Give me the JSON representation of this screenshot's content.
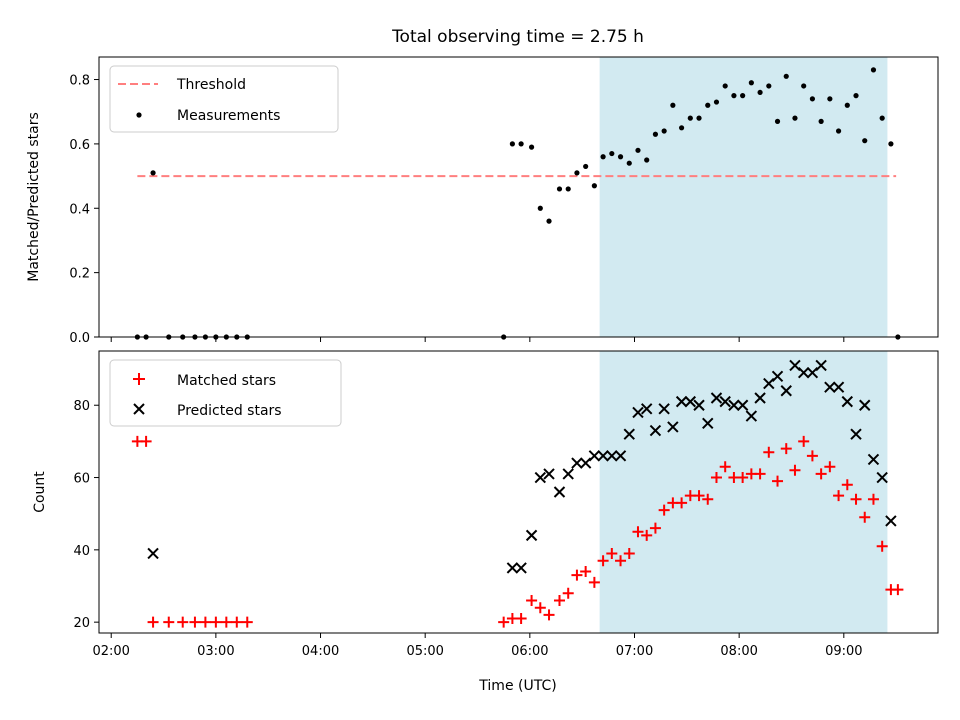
{
  "chart_data": [
    {
      "type": "scatter",
      "title": "Total observing time = 2.75 h",
      "xlabel": "",
      "ylabel": "Matched/Predicted stars",
      "ylim": [
        0,
        0.87
      ],
      "yticks": [
        "0.0",
        "0.2",
        "0.4",
        "0.6",
        "0.8"
      ],
      "ytick_values": [
        0,
        0.2,
        0.4,
        0.6,
        0.8
      ],
      "shaded_range": [
        "06:40",
        "09:25"
      ],
      "legend_position": "upper left",
      "threshold": {
        "name": "Threshold",
        "color": "#ff7f7f",
        "x": [
          "02:15",
          "09:30"
        ],
        "y": 0.5
      },
      "series": [
        {
          "name": "Measurements",
          "color": "#000000",
          "marker": "dot",
          "points": [
            [
              "02:15",
              0.0
            ],
            [
              "02:20",
              0.0
            ],
            [
              "02:24",
              0.51
            ],
            [
              "02:33",
              0.0
            ],
            [
              "02:41",
              0.0
            ],
            [
              "02:48",
              0.0
            ],
            [
              "02:54",
              0.0
            ],
            [
              "03:00",
              0.0
            ],
            [
              "03:06",
              0.0
            ],
            [
              "03:12",
              0.0
            ],
            [
              "03:18",
              0.0
            ],
            [
              "05:45",
              0.0
            ],
            [
              "05:50",
              0.6
            ],
            [
              "05:55",
              0.6
            ],
            [
              "06:01",
              0.59
            ],
            [
              "06:06",
              0.4
            ],
            [
              "06:11",
              0.36
            ],
            [
              "06:17",
              0.46
            ],
            [
              "06:22",
              0.46
            ],
            [
              "06:27",
              0.51
            ],
            [
              "06:32",
              0.53
            ],
            [
              "06:37",
              0.47
            ],
            [
              "06:42",
              0.56
            ],
            [
              "06:47",
              0.57
            ],
            [
              "06:52",
              0.56
            ],
            [
              "06:57",
              0.54
            ],
            [
              "07:02",
              0.58
            ],
            [
              "07:07",
              0.55
            ],
            [
              "07:12",
              0.63
            ],
            [
              "07:17",
              0.64
            ],
            [
              "07:22",
              0.72
            ],
            [
              "07:27",
              0.65
            ],
            [
              "07:32",
              0.68
            ],
            [
              "07:37",
              0.68
            ],
            [
              "07:42",
              0.72
            ],
            [
              "07:47",
              0.73
            ],
            [
              "07:52",
              0.78
            ],
            [
              "07:57",
              0.75
            ],
            [
              "08:02",
              0.75
            ],
            [
              "08:07",
              0.79
            ],
            [
              "08:12",
              0.76
            ],
            [
              "08:17",
              0.78
            ],
            [
              "08:22",
              0.67
            ],
            [
              "08:27",
              0.81
            ],
            [
              "08:32",
              0.68
            ],
            [
              "08:37",
              0.78
            ],
            [
              "08:42",
              0.74
            ],
            [
              "08:47",
              0.67
            ],
            [
              "08:52",
              0.74
            ],
            [
              "08:57",
              0.64
            ],
            [
              "09:02",
              0.72
            ],
            [
              "09:07",
              0.75
            ],
            [
              "09:12",
              0.61
            ],
            [
              "09:17",
              0.83
            ],
            [
              "09:22",
              0.68
            ],
            [
              "09:27",
              0.6
            ],
            [
              "09:31",
              0.0
            ]
          ]
        }
      ]
    },
    {
      "type": "scatter",
      "title": "",
      "xlabel": "Time (UTC)",
      "ylabel": "Count",
      "ylim": [
        17,
        95
      ],
      "yticks": [
        "20",
        "40",
        "60",
        "80"
      ],
      "ytick_values": [
        20,
        40,
        60,
        80
      ],
      "xticks": [
        "02:00",
        "03:00",
        "04:00",
        "05:00",
        "06:00",
        "07:00",
        "08:00",
        "09:00"
      ],
      "xlim": [
        "01:53",
        "09:54"
      ],
      "shaded_range": [
        "06:40",
        "09:25"
      ],
      "legend_position": "upper left",
      "series": [
        {
          "name": "Matched stars",
          "color": "#ff0000",
          "marker": "plus",
          "points": [
            [
              "02:15",
              70
            ],
            [
              "02:20",
              70
            ],
            [
              "02:24",
              20
            ],
            [
              "02:33",
              20
            ],
            [
              "02:41",
              20
            ],
            [
              "02:48",
              20
            ],
            [
              "02:54",
              20
            ],
            [
              "03:00",
              20
            ],
            [
              "03:06",
              20
            ],
            [
              "03:12",
              20
            ],
            [
              "03:18",
              20
            ],
            [
              "05:45",
              20
            ],
            [
              "05:50",
              21
            ],
            [
              "05:55",
              21
            ],
            [
              "06:01",
              26
            ],
            [
              "06:06",
              24
            ],
            [
              "06:11",
              22
            ],
            [
              "06:17",
              26
            ],
            [
              "06:22",
              28
            ],
            [
              "06:27",
              33
            ],
            [
              "06:32",
              34
            ],
            [
              "06:37",
              31
            ],
            [
              "06:42",
              37
            ],
            [
              "06:47",
              39
            ],
            [
              "06:52",
              37
            ],
            [
              "06:57",
              39
            ],
            [
              "07:02",
              45
            ],
            [
              "07:07",
              44
            ],
            [
              "07:12",
              46
            ],
            [
              "07:17",
              51
            ],
            [
              "07:22",
              53
            ],
            [
              "07:27",
              53
            ],
            [
              "07:32",
              55
            ],
            [
              "07:37",
              55
            ],
            [
              "07:42",
              54
            ],
            [
              "07:47",
              60
            ],
            [
              "07:52",
              63
            ],
            [
              "07:57",
              60
            ],
            [
              "08:02",
              60
            ],
            [
              "08:07",
              61
            ],
            [
              "08:12",
              61
            ],
            [
              "08:17",
              67
            ],
            [
              "08:22",
              59
            ],
            [
              "08:27",
              68
            ],
            [
              "08:32",
              62
            ],
            [
              "08:37",
              70
            ],
            [
              "08:42",
              66
            ],
            [
              "08:47",
              61
            ],
            [
              "08:52",
              63
            ],
            [
              "08:57",
              55
            ],
            [
              "09:02",
              58
            ],
            [
              "09:07",
              54
            ],
            [
              "09:12",
              49
            ],
            [
              "09:17",
              54
            ],
            [
              "09:22",
              41
            ],
            [
              "09:27",
              29
            ],
            [
              "09:31",
              29
            ]
          ]
        },
        {
          "name": "Predicted stars",
          "color": "#000000",
          "marker": "x",
          "points": [
            [
              "02:24",
              39
            ],
            [
              "05:50",
              35
            ],
            [
              "05:55",
              35
            ],
            [
              "06:01",
              44
            ],
            [
              "06:06",
              60
            ],
            [
              "06:11",
              61
            ],
            [
              "06:17",
              56
            ],
            [
              "06:22",
              61
            ],
            [
              "06:27",
              64
            ],
            [
              "06:32",
              64
            ],
            [
              "06:37",
              66
            ],
            [
              "06:42",
              66
            ],
            [
              "06:47",
              66
            ],
            [
              "06:52",
              66
            ],
            [
              "06:57",
              72
            ],
            [
              "07:02",
              78
            ],
            [
              "07:07",
              79
            ],
            [
              "07:12",
              73
            ],
            [
              "07:17",
              79
            ],
            [
              "07:22",
              74
            ],
            [
              "07:27",
              81
            ],
            [
              "07:32",
              81
            ],
            [
              "07:37",
              80
            ],
            [
              "07:42",
              75
            ],
            [
              "07:47",
              82
            ],
            [
              "07:52",
              81
            ],
            [
              "07:57",
              80
            ],
            [
              "08:02",
              80
            ],
            [
              "08:07",
              77
            ],
            [
              "08:12",
              82
            ],
            [
              "08:17",
              86
            ],
            [
              "08:22",
              88
            ],
            [
              "08:27",
              84
            ],
            [
              "08:32",
              91
            ],
            [
              "08:37",
              89
            ],
            [
              "08:42",
              89
            ],
            [
              "08:47",
              91
            ],
            [
              "08:52",
              85
            ],
            [
              "08:57",
              85
            ],
            [
              "09:02",
              81
            ],
            [
              "09:07",
              72
            ],
            [
              "09:12",
              80
            ],
            [
              "09:17",
              65
            ],
            [
              "09:22",
              60
            ],
            [
              "09:27",
              48
            ]
          ]
        }
      ]
    }
  ]
}
